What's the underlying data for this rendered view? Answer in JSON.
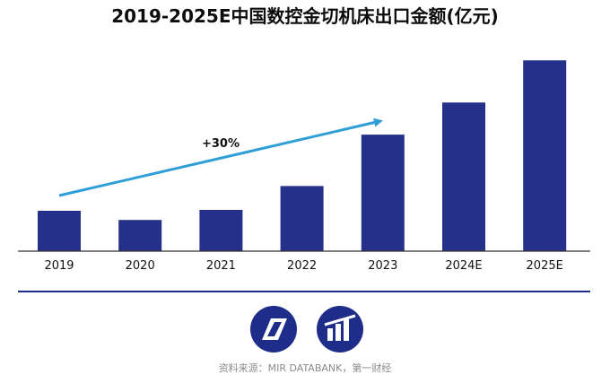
{
  "chart_data": {
    "type": "bar",
    "title": "2019-2025E中国数控金切机床出口金额(亿元)",
    "categories": [
      "2019",
      "2020",
      "2021",
      "2022",
      "2023",
      "2024E",
      "2025E"
    ],
    "values": [
      44,
      34,
      45,
      71,
      127,
      162,
      208
    ],
    "ylim": [
      0,
      220
    ],
    "grid": false,
    "annotations": [
      {
        "text": "+30%",
        "type": "growth-arrow"
      }
    ],
    "colors": {
      "bar": "#25308a",
      "arrow": "#2e9fd6",
      "axis": "#333333"
    }
  },
  "footer": {
    "source": "资料来源：MIR DATABANK，第一财经",
    "logos": [
      "mir-logo-icon",
      "databank-logo-icon"
    ]
  }
}
